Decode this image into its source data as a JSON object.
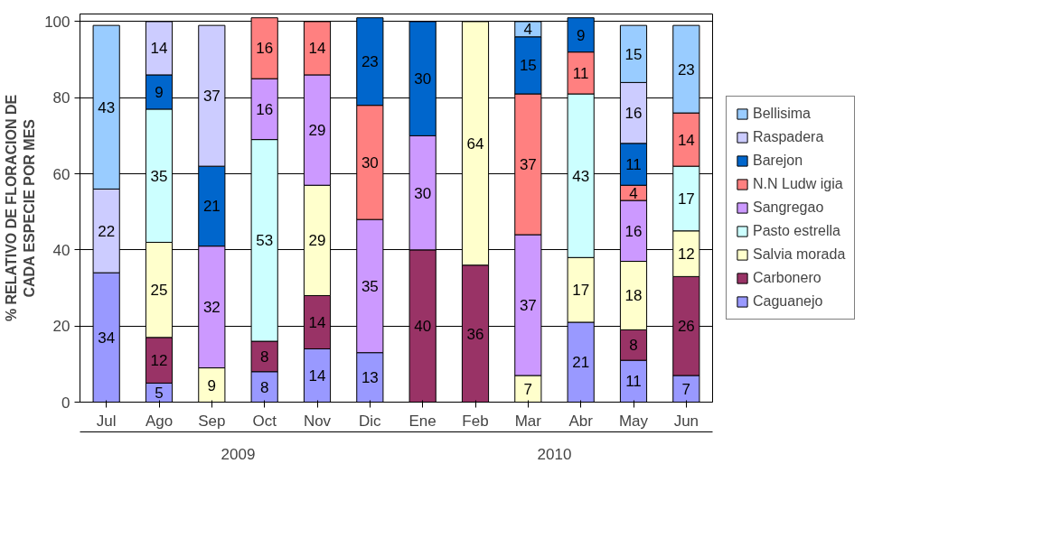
{
  "chart_data": {
    "type": "bar",
    "stacked": true,
    "ylabel": "% RELATIVO DE FLORACION DE\nCADA ESPECIE POR MES",
    "categories": [
      "Jul",
      "Ago",
      "Sep",
      "Oct",
      "Nov",
      "Dic",
      "Ene",
      "Feb",
      "Mar",
      "Abr",
      "May",
      "Jun"
    ],
    "annotations": [
      "2009",
      "2010"
    ],
    "series": [
      {
        "name": "Caguanejo",
        "color": "#9999ff",
        "values": [
          34,
          5,
          null,
          8,
          14,
          13,
          null,
          null,
          null,
          21,
          11,
          7
        ]
      },
      {
        "name": "Carbonero",
        "color": "#993366",
        "values": [
          null,
          12,
          null,
          8,
          14,
          null,
          40,
          36,
          null,
          null,
          8,
          26
        ]
      },
      {
        "name": "Salvia morada",
        "color": "#ffffcc",
        "values": [
          null,
          25,
          9,
          null,
          29,
          null,
          null,
          64,
          7,
          17,
          18,
          12
        ]
      },
      {
        "name": "Pasto estrella",
        "color": "#ccffff",
        "values": [
          null,
          35,
          null,
          53,
          null,
          null,
          null,
          null,
          null,
          43,
          null,
          17
        ]
      },
      {
        "name": "Sangregao",
        "color": "#cc99ff",
        "values": [
          null,
          null,
          32,
          16,
          29,
          35,
          30,
          null,
          37,
          null,
          16,
          null
        ]
      },
      {
        "name": "N.N Ludw igia",
        "color": "#ff8080",
        "values": [
          null,
          null,
          null,
          16,
          14,
          30,
          null,
          null,
          37,
          11,
          4,
          14
        ]
      },
      {
        "name": "Barejon",
        "color": "#0066cc",
        "values": [
          null,
          9,
          21,
          null,
          null,
          23,
          30,
          null,
          15,
          9,
          11,
          null
        ]
      },
      {
        "name": "Raspadera",
        "color": "#ccccff",
        "values": [
          22,
          14,
          37,
          null,
          null,
          null,
          null,
          null,
          null,
          null,
          16,
          null
        ]
      },
      {
        "name": "Bellisima",
        "color": "#99ccff",
        "values": [
          43,
          null,
          null,
          null,
          null,
          null,
          null,
          null,
          4,
          null,
          15,
          23
        ]
      }
    ],
    "ylim": [
      0,
      102
    ],
    "yticks": [
      0,
      20,
      40,
      60,
      80,
      100
    ],
    "grid": "y",
    "legend": "right",
    "data_labels": true
  }
}
